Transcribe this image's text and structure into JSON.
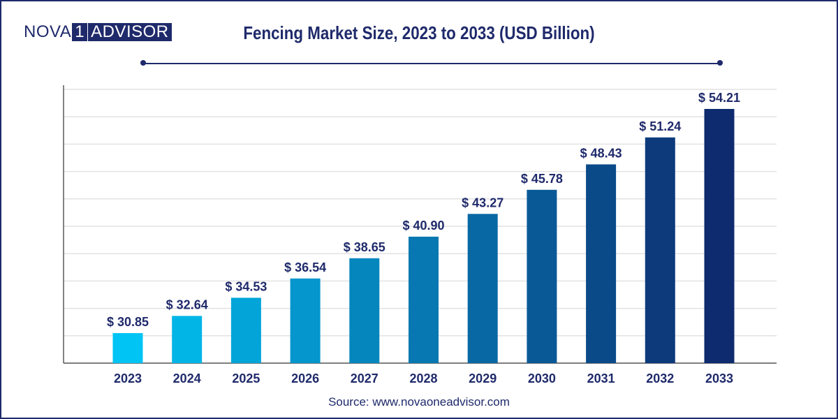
{
  "logo": {
    "left": "NOVA",
    "middle": "1",
    "right": "ADVISOR"
  },
  "title": "Fencing Market Size, 2023 to 2033 (USD Billion)",
  "source": "Source: www.novaoneadvisor.com",
  "colors": {
    "brand": "#1f2a6b",
    "bar_start": "#00c4f4",
    "bar_end": "#0d2b6e",
    "grid": "#e2e2e2"
  },
  "chart_data": {
    "type": "bar",
    "title": "Fencing Market Size, 2023 to 2033 (USD Billion)",
    "xlabel": "",
    "ylabel": "",
    "categories": [
      "2023",
      "2024",
      "2025",
      "2026",
      "2027",
      "2028",
      "2029",
      "2030",
      "2031",
      "2032",
      "2033"
    ],
    "values": [
      30.85,
      32.64,
      34.53,
      36.54,
      38.65,
      40.9,
      43.27,
      45.78,
      48.43,
      51.24,
      54.21
    ],
    "value_labels": [
      "$ 30.85",
      "$ 32.64",
      "$ 34.53",
      "$ 36.54",
      "$ 38.65",
      "$ 40.90",
      "$ 43.27",
      "$ 45.78",
      "$ 48.43",
      "$ 51.24",
      "$ 54.21"
    ],
    "ylim": [
      28,
      58
    ],
    "grid": true,
    "legend": "none"
  }
}
